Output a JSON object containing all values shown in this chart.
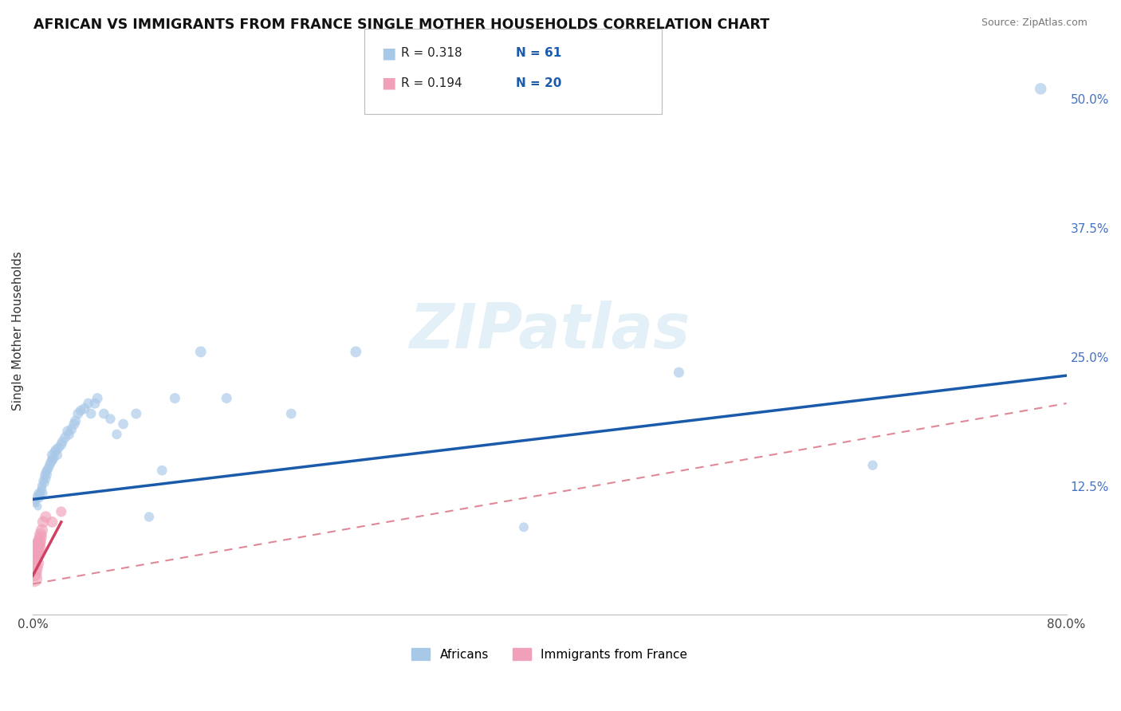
{
  "title": "AFRICAN VS IMMIGRANTS FROM FRANCE SINGLE MOTHER HOUSEHOLDS CORRELATION CHART",
  "source": "Source: ZipAtlas.com",
  "ylabel": "Single Mother Households",
  "xlim": [
    0.0,
    0.8
  ],
  "ylim": [
    0.0,
    0.55
  ],
  "xtick_positions": [
    0.0,
    0.1,
    0.2,
    0.3,
    0.4,
    0.5,
    0.6,
    0.7,
    0.8
  ],
  "xticklabels": [
    "0.0%",
    "",
    "",
    "",
    "",
    "",
    "",
    "",
    "80.0%"
  ],
  "ytick_positions": [
    0.125,
    0.25,
    0.375,
    0.5
  ],
  "ytick_labels": [
    "12.5%",
    "25.0%",
    "37.5%",
    "50.0%"
  ],
  "legend_r1": "R = 0.318",
  "legend_n1": "N = 61",
  "legend_r2": "R = 0.194",
  "legend_n2": "N = 20",
  "color_african": "#a8c8e8",
  "color_france": "#f0a0b8",
  "color_line_african": "#1a5aaa",
  "color_line_france": "#d04060",
  "color_line_france_dash": "#e08898",
  "background_color": "#ffffff",
  "grid_color": "#d0d0d0",
  "africans_x": [
    0.001,
    0.002,
    0.003,
    0.003,
    0.004,
    0.004,
    0.005,
    0.005,
    0.006,
    0.006,
    0.007,
    0.007,
    0.008,
    0.008,
    0.009,
    0.009,
    0.01,
    0.01,
    0.011,
    0.011,
    0.012,
    0.013,
    0.014,
    0.015,
    0.015,
    0.016,
    0.017,
    0.018,
    0.019,
    0.02,
    0.022,
    0.023,
    0.025,
    0.027,
    0.028,
    0.03,
    0.032,
    0.033,
    0.035,
    0.037,
    0.04,
    0.043,
    0.045,
    0.048,
    0.05,
    0.055,
    0.06,
    0.065,
    0.07,
    0.08,
    0.09,
    0.1,
    0.11,
    0.13,
    0.15,
    0.2,
    0.25,
    0.38,
    0.5,
    0.65,
    0.78
  ],
  "africans_y": [
    0.11,
    0.108,
    0.112,
    0.115,
    0.105,
    0.118,
    0.113,
    0.116,
    0.12,
    0.117,
    0.125,
    0.122,
    0.118,
    0.13,
    0.128,
    0.135,
    0.132,
    0.138,
    0.14,
    0.136,
    0.142,
    0.145,
    0.148,
    0.15,
    0.155,
    0.152,
    0.158,
    0.16,
    0.155,
    0.162,
    0.165,
    0.168,
    0.172,
    0.178,
    0.175,
    0.18,
    0.185,
    0.188,
    0.195,
    0.198,
    0.2,
    0.205,
    0.195,
    0.205,
    0.21,
    0.195,
    0.19,
    0.175,
    0.185,
    0.195,
    0.095,
    0.14,
    0.21,
    0.255,
    0.21,
    0.195,
    0.255,
    0.085,
    0.235,
    0.145,
    0.51
  ],
  "africans_size": [
    55,
    55,
    60,
    58,
    52,
    56,
    65,
    70,
    60,
    62,
    68,
    72,
    65,
    70,
    75,
    68,
    80,
    72,
    78,
    75,
    82,
    80,
    85,
    88,
    90,
    85,
    82,
    88,
    80,
    85,
    90,
    85,
    88,
    92,
    90,
    88,
    92,
    90,
    88,
    85,
    90,
    88,
    85,
    90,
    88,
    85,
    82,
    80,
    85,
    88,
    80,
    85,
    90,
    100,
    88,
    85,
    100,
    75,
    90,
    80,
    110
  ],
  "france_x": [
    0.001,
    0.001,
    0.002,
    0.002,
    0.002,
    0.003,
    0.003,
    0.003,
    0.004,
    0.004,
    0.005,
    0.005,
    0.005,
    0.006,
    0.006,
    0.007,
    0.008,
    0.01,
    0.015,
    0.022
  ],
  "france_y": [
    0.035,
    0.04,
    0.045,
    0.055,
    0.058,
    0.05,
    0.062,
    0.065,
    0.06,
    0.068,
    0.07,
    0.065,
    0.072,
    0.075,
    0.078,
    0.082,
    0.09,
    0.095,
    0.09,
    0.1
  ],
  "france_size": [
    220,
    200,
    180,
    190,
    170,
    175,
    165,
    160,
    155,
    150,
    145,
    140,
    135,
    130,
    125,
    120,
    110,
    105,
    100,
    90
  ],
  "line_african_x0": 0.0,
  "line_african_y0": 0.112,
  "line_african_x1": 0.8,
  "line_african_y1": 0.232,
  "line_france_dash_x0": 0.0,
  "line_france_dash_y0": 0.03,
  "line_france_dash_x1": 0.8,
  "line_france_dash_y1": 0.205,
  "line_france_solid_x0": 0.0,
  "line_france_solid_y0": 0.038,
  "line_france_solid_x1": 0.022,
  "line_france_solid_y1": 0.09
}
